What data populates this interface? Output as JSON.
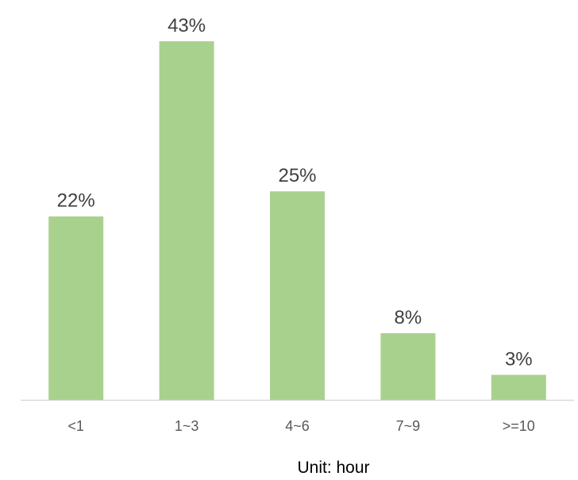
{
  "chart_data": {
    "type": "bar",
    "categories": [
      "<1",
      "1~3",
      "4~6",
      "7~9",
      ">=10"
    ],
    "values": [
      22,
      43,
      25,
      8,
      3
    ],
    "value_labels": [
      "22%",
      "43%",
      "25%",
      "8%",
      "3%"
    ],
    "title": "",
    "xlabel": "Unit: hour",
    "ylabel": "",
    "ylim": [
      0,
      43
    ],
    "grid": false,
    "legend": "none",
    "bar_color": "#a9d18e",
    "axis_color": "#d9d9d9"
  }
}
